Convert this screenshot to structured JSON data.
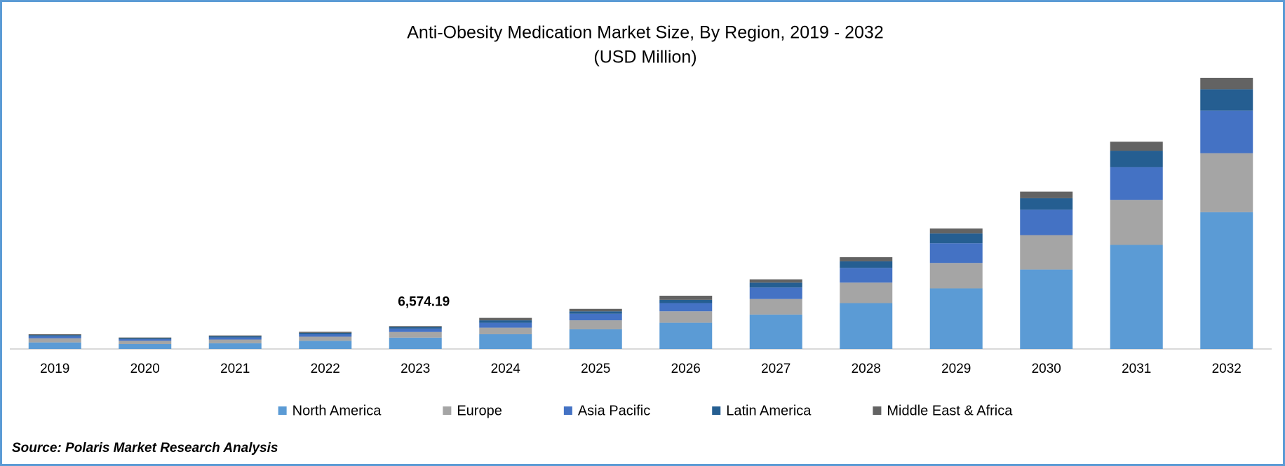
{
  "chart_data": {
    "type": "stacked_bar",
    "title": "Anti-Obesity Medication Market Size, By Region, 2019 - 2032",
    "subtitle": "(USD Million)",
    "categories": [
      "2019",
      "2020",
      "2021",
      "2022",
      "2023",
      "2024",
      "2025",
      "2026",
      "2027",
      "2028",
      "2029",
      "2030",
      "2031",
      "2032"
    ],
    "series": [
      {
        "name": "North America",
        "color": "#5b9bd5",
        "values": [
          1880,
          1410,
          1650,
          2350,
          3250,
          4230,
          5640,
          7520,
          9870,
          13160,
          17390,
          22795,
          29845,
          39245
        ]
      },
      {
        "name": "Europe",
        "color": "#a5a5a5",
        "values": [
          1175,
          940,
          1060,
          1175,
          1620,
          1880,
          2585,
          3290,
          4465,
          5875,
          7285,
          9870,
          12925,
          16920
        ]
      },
      {
        "name": "Asia Pacific",
        "color": "#4472c4",
        "values": [
          590,
          470,
          590,
          700,
          980,
          1410,
          1880,
          2350,
          3290,
          4230,
          5640,
          7285,
          9400,
          12220
        ]
      },
      {
        "name": "Latin America",
        "color": "#255e91",
        "values": [
          350,
          280,
          350,
          420,
          450,
          700,
          700,
          940,
          1410,
          1880,
          2820,
          3290,
          4700,
          6110
        ]
      },
      {
        "name": "Middle East & Africa",
        "color": "#636363",
        "values": [
          235,
          190,
          235,
          280,
          274.19,
          700,
          700,
          1175,
          940,
          1175,
          1410,
          1880,
          2585,
          3290
        ]
      }
    ],
    "total_labels": [
      null,
      null,
      null,
      null,
      "6,574.19",
      null,
      null,
      null,
      null,
      null,
      null,
      null,
      null,
      null
    ],
    "source": "Source: Polaris Market Research Analysis",
    "legend": "bottom"
  }
}
